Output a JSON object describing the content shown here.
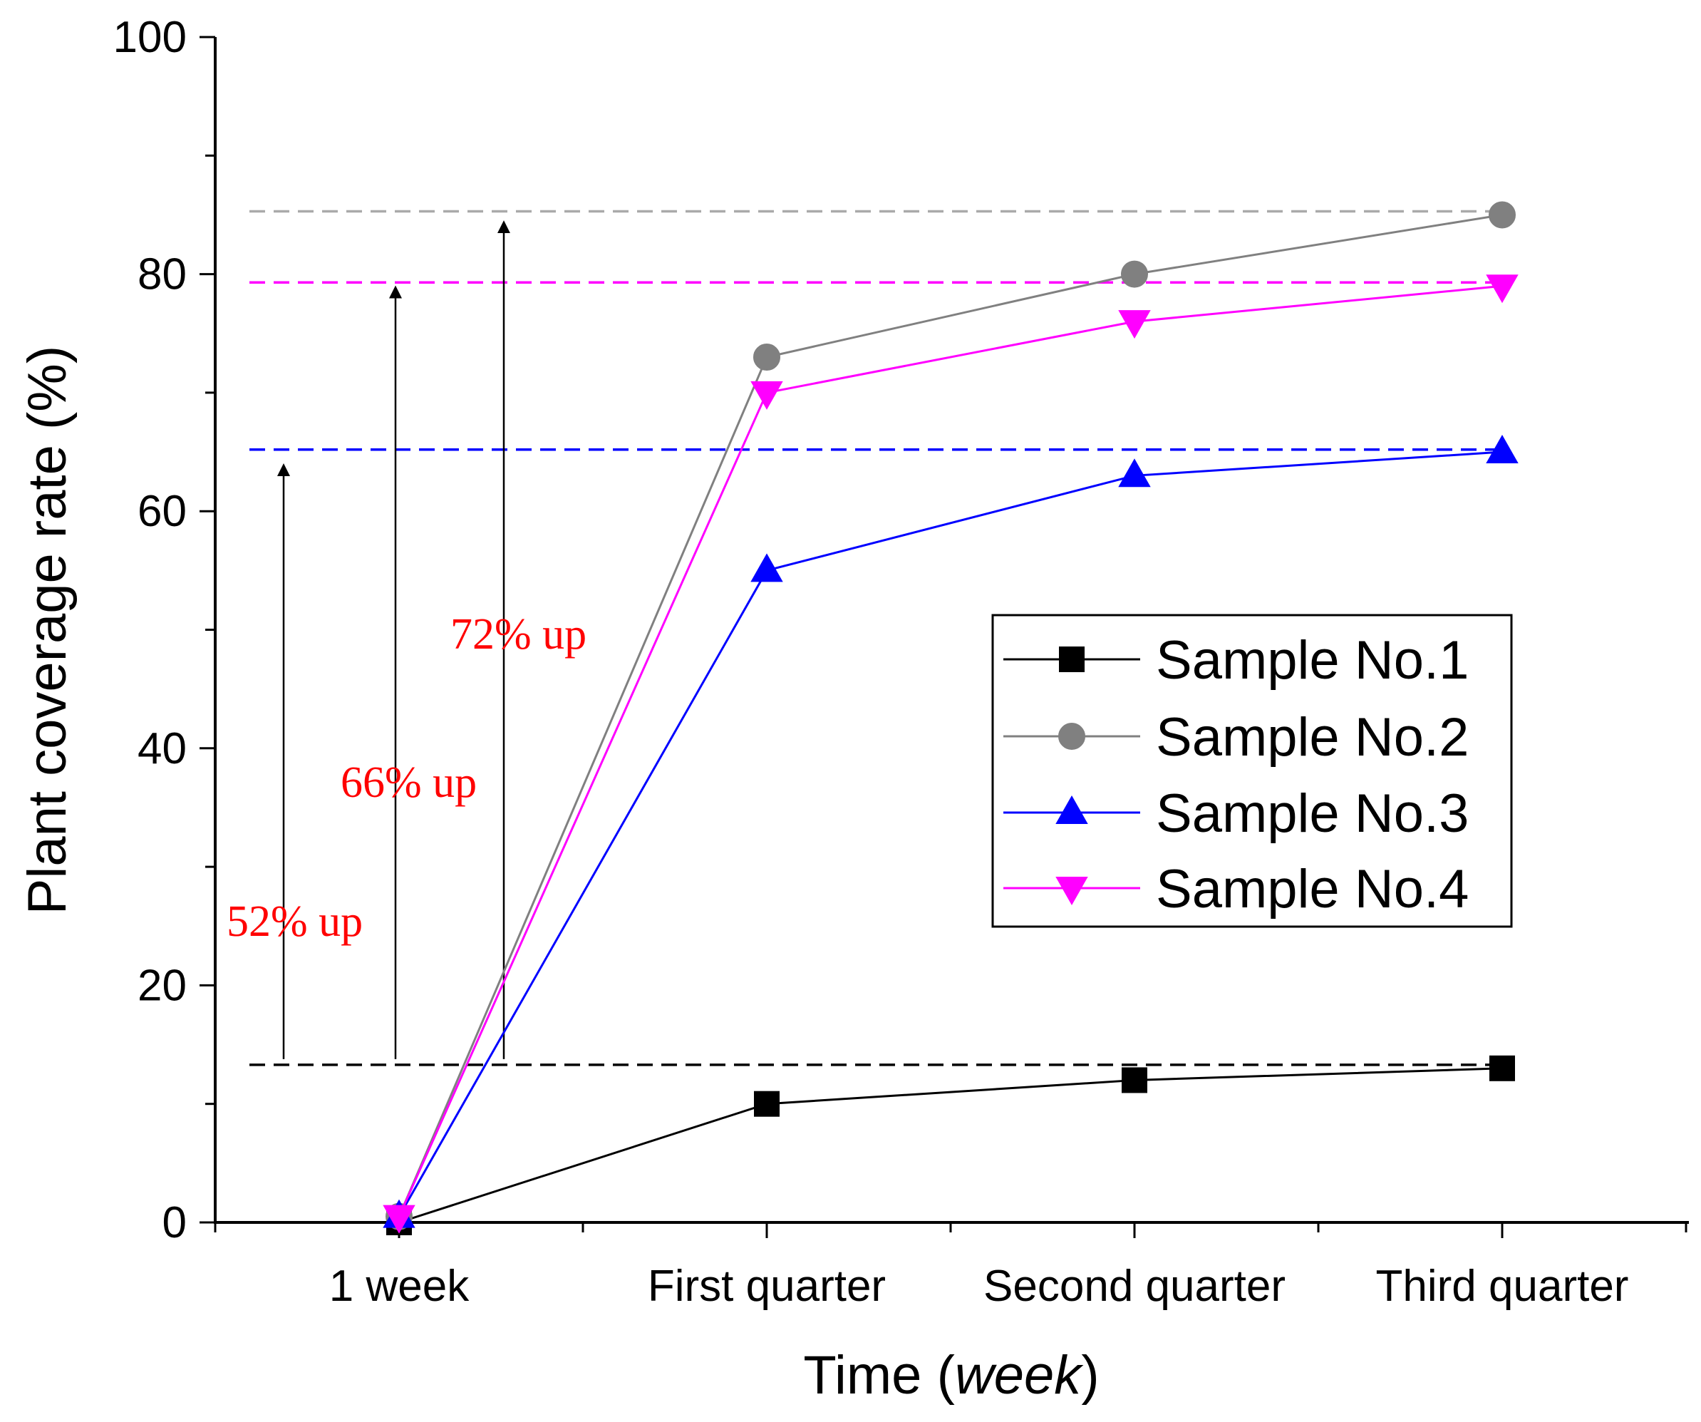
{
  "chart_data": {
    "type": "line",
    "xlabel": "Time",
    "xlabel_unit": "week",
    "ylabel": "Plant coverage rate (%)",
    "ylim": [
      0,
      100
    ],
    "yticks": [
      0,
      20,
      40,
      60,
      80,
      100
    ],
    "categories": [
      "1 week",
      "First quarter",
      "Second quarter",
      "Third quarter"
    ],
    "series": [
      {
        "name": "Sample No.1",
        "color": "#000000",
        "marker": "square",
        "values": [
          0,
          10,
          12,
          13
        ]
      },
      {
        "name": "Sample No.2",
        "color": "#808080",
        "marker": "circle",
        "values": [
          0.5,
          73,
          80,
          85
        ]
      },
      {
        "name": "Sample No.3",
        "color": "#0000ff",
        "marker": "triangle-up",
        "values": [
          0.5,
          55,
          63,
          65
        ]
      },
      {
        "name": "Sample No.4",
        "color": "#ff00ff",
        "marker": "triangle-down",
        "values": [
          0.5,
          70,
          76,
          79
        ]
      }
    ],
    "reference_lines": [
      {
        "value": 85.3,
        "color": "#aaaaaa"
      },
      {
        "value": 79.3,
        "color": "#ff00ff"
      },
      {
        "value": 65.2,
        "color": "#0000ff"
      },
      {
        "value": 13.3,
        "color": "#000000"
      }
    ],
    "annotations": [
      {
        "text": "52% up",
        "color": "#ff0000",
        "from": 13.3,
        "to": 63.5
      },
      {
        "text": "66% up",
        "color": "#ff0000",
        "from": 13.3,
        "to": 78.5
      },
      {
        "text": "72% up",
        "color": "#ff0000",
        "from": 13.3,
        "to": 84
      }
    ],
    "legend_position": "center-right"
  }
}
